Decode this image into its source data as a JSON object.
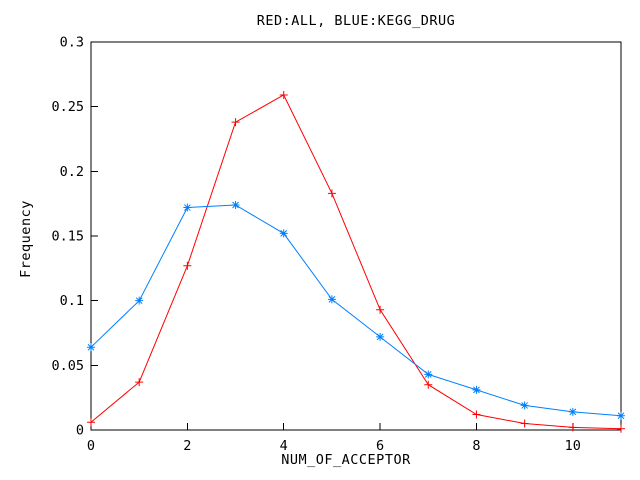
{
  "chart_data": {
    "type": "line",
    "title": "RED:ALL, BLUE:KEGG_DRUG",
    "xlabel": "NUM_OF_ACCEPTOR",
    "ylabel": "Frequency",
    "xlim": [
      0,
      11
    ],
    "ylim": [
      0,
      0.3
    ],
    "grid": false,
    "legend_position": "none",
    "background_color": "#ffffff",
    "axis_color": "#000000",
    "xticks": {
      "values": [
        0,
        2,
        4,
        6,
        8,
        10
      ],
      "labels": [
        "0",
        "2",
        "4",
        "6",
        "8",
        "10"
      ]
    },
    "yticks": {
      "values": [
        0,
        0.05,
        0.1,
        0.15,
        0.2,
        0.25,
        0.3
      ],
      "labels": [
        "0",
        "0.05",
        "0.1",
        "0.15",
        "0.2",
        "0.25",
        "0.3"
      ]
    },
    "x": [
      0,
      1,
      2,
      3,
      4,
      5,
      6,
      7,
      8,
      9,
      10,
      11
    ],
    "series": [
      {
        "name": "ALL",
        "color": "#ff0000",
        "marker": "plus",
        "values": [
          0.006,
          0.037,
          0.127,
          0.238,
          0.259,
          0.183,
          0.093,
          0.035,
          0.012,
          0.005,
          0.002,
          0.001
        ]
      },
      {
        "name": "KEGG_DRUG",
        "color": "#0080ff",
        "marker": "asterisk",
        "values": [
          0.064,
          0.1,
          0.172,
          0.174,
          0.152,
          0.101,
          0.072,
          0.043,
          0.031,
          0.019,
          0.014,
          0.011
        ]
      }
    ]
  }
}
